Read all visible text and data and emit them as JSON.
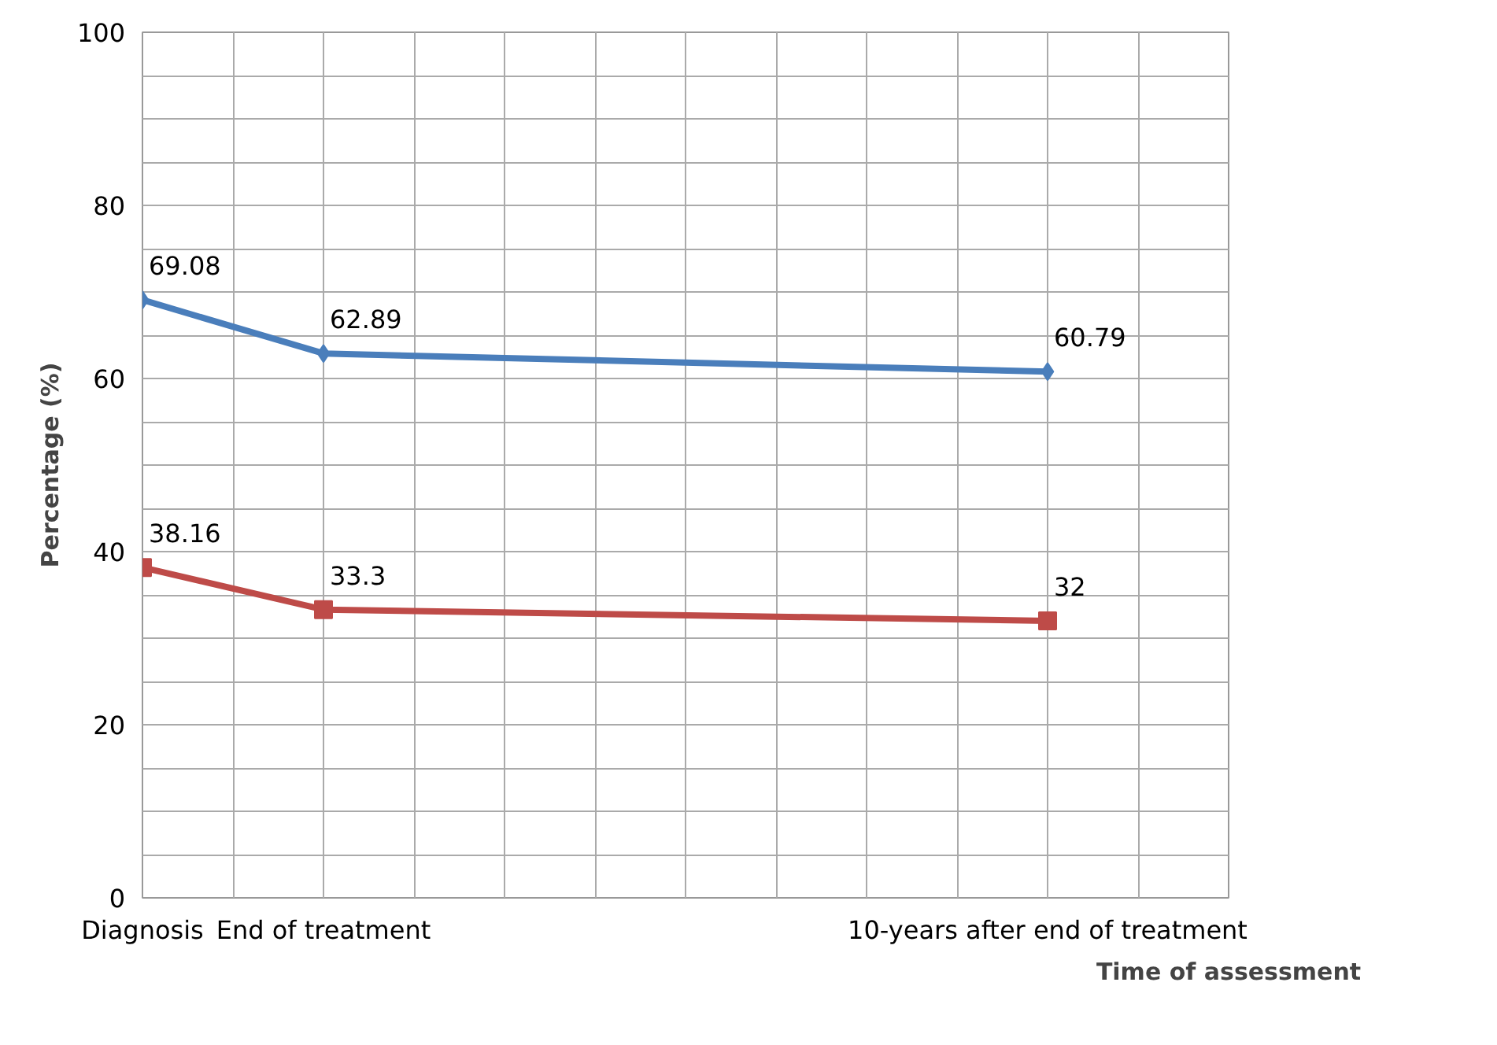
{
  "chart_data": {
    "type": "line",
    "xlabel": "Time of assessment",
    "ylabel": "Percentage (%)",
    "categories": [
      "Diagnosis",
      null,
      "End of treatment",
      null,
      null,
      null,
      null,
      null,
      null,
      null,
      "10-years after end of treatment",
      null,
      null
    ],
    "ylim": [
      0,
      100
    ],
    "yticks": [
      0,
      {
        "value": 5,
        "label": null
      },
      {
        "value": 10,
        "label": null
      },
      {
        "value": 15,
        "label": null
      },
      20,
      {
        "value": 25,
        "label": null
      },
      {
        "value": 30,
        "label": null
      },
      {
        "value": 35,
        "label": null
      },
      40,
      {
        "value": 45,
        "label": null
      },
      {
        "value": 50,
        "label": null
      },
      {
        "value": 55,
        "label": null
      },
      60,
      {
        "value": 65,
        "label": null
      },
      {
        "value": 70,
        "label": null
      },
      {
        "value": 75,
        "label": null
      },
      80,
      {
        "value": 85,
        "label": null
      },
      {
        "value": 90,
        "label": null
      },
      {
        "value": 95,
        "label": null
      },
      100
    ],
    "series": [
      {
        "color": "#4a7ebb",
        "marker": "diamond",
        "values": [
          69.08,
          null,
          62.89,
          null,
          null,
          null,
          null,
          null,
          null,
          null,
          60.79,
          null,
          null
        ]
      },
      {
        "color": "#be4b48",
        "marker": "square",
        "values": [
          38.16,
          null,
          33.3,
          null,
          null,
          null,
          null,
          null,
          null,
          null,
          32,
          null,
          null
        ]
      }
    ],
    "data_labels": true,
    "grid": true,
    "line_style": "solid"
  }
}
